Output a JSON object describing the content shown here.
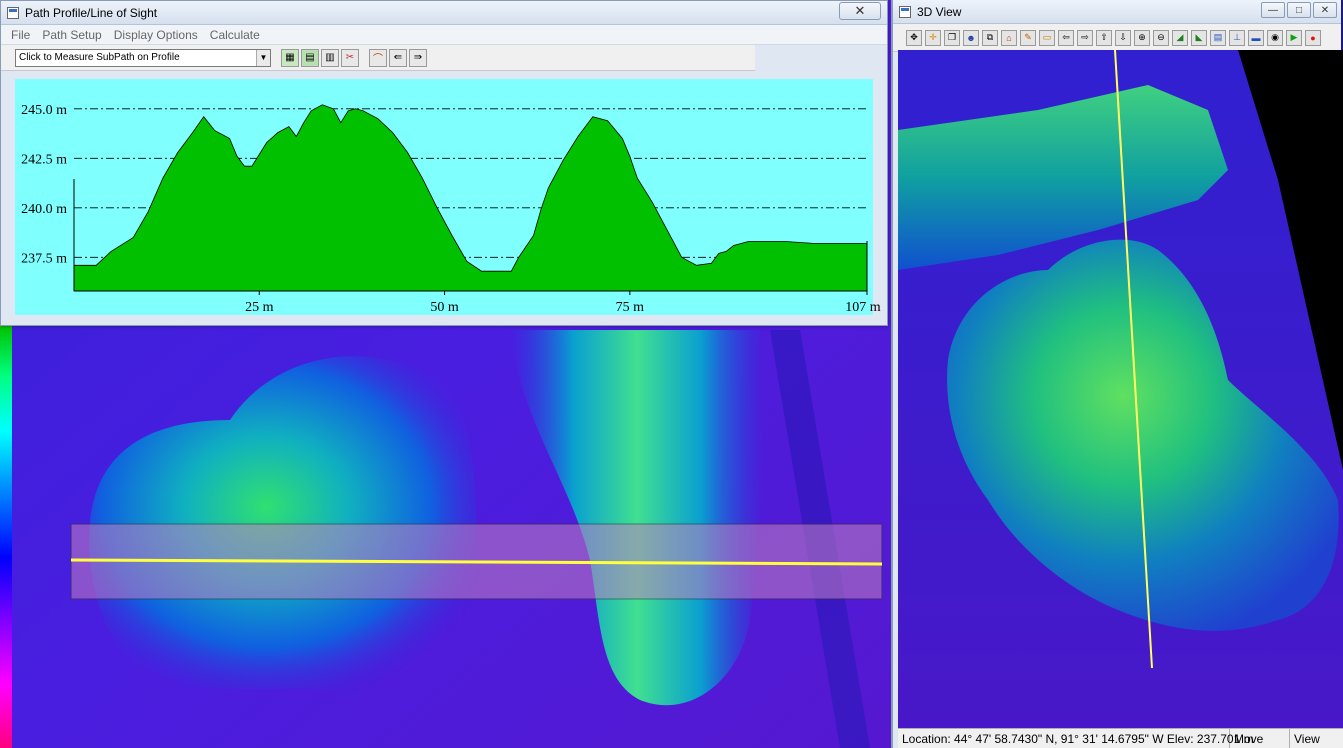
{
  "profile_window": {
    "title": "Path Profile/Line of Sight",
    "close_glyph": "✕",
    "menu": [
      "File",
      "Path Setup",
      "Display Options",
      "Calculate"
    ],
    "subpath_dropdown": "Click to Measure SubPath on Profile",
    "toolbar_icons": [
      "profile-save-icon",
      "profile-export-icon",
      "profile-stats-icon",
      "profile-settings-icon",
      "line-of-sight-icon",
      "path-prev-icon",
      "path-next-icon"
    ]
  },
  "chart_data": {
    "type": "area",
    "title": "",
    "xlabel": "",
    "ylabel": "",
    "xlim": [
      0,
      107
    ],
    "ylim": [
      235.8,
      246.0
    ],
    "y_ticks": [
      {
        "value": 245.0,
        "label": "245.0 m"
      },
      {
        "value": 242.5,
        "label": "242.5 m"
      },
      {
        "value": 240.0,
        "label": "240.0 m"
      },
      {
        "value": 237.5,
        "label": "237.5 m"
      }
    ],
    "x_ticks": [
      {
        "value": 25,
        "label": "25 m"
      },
      {
        "value": 50,
        "label": "50 m"
      },
      {
        "value": 75,
        "label": "75 m"
      },
      {
        "value": 107,
        "label": "107 m"
      }
    ],
    "grid": "dash-dot horizontal",
    "colors": {
      "background": "#80ffff",
      "fill": "#00c000",
      "stroke": "#000000",
      "grid": "#000000"
    },
    "series": [
      {
        "x": [
          0,
          3,
          5,
          8,
          10,
          12,
          14,
          16,
          17.5,
          19,
          21,
          22,
          23,
          24,
          25,
          26,
          27.5,
          29,
          30,
          31,
          32,
          33.5,
          35,
          36,
          37,
          38,
          39,
          40,
          41,
          43,
          45,
          47,
          49,
          51,
          53,
          55,
          57,
          59,
          60,
          62,
          63,
          64,
          66,
          68,
          70,
          72,
          74,
          75,
          76,
          78,
          80,
          82,
          84,
          86,
          87,
          88,
          89,
          90,
          91,
          93,
          96,
          100,
          104,
          107
        ],
        "y": [
          237.1,
          237.1,
          237.8,
          238.5,
          239.8,
          241.5,
          242.8,
          243.8,
          244.6,
          243.9,
          243.5,
          242.6,
          242.1,
          242.1,
          242.7,
          243.3,
          243.8,
          244.1,
          243.6,
          244.3,
          244.9,
          245.2,
          245.0,
          244.3,
          244.9,
          245.0,
          244.9,
          244.7,
          244.5,
          243.8,
          242.8,
          241.5,
          240.0,
          238.6,
          237.3,
          236.8,
          236.8,
          236.8,
          237.5,
          238.6,
          239.9,
          241.0,
          242.4,
          243.6,
          244.6,
          244.4,
          243.5,
          242.6,
          241.5,
          240.3,
          238.9,
          237.5,
          237.1,
          237.2,
          237.7,
          237.8,
          238.1,
          238.2,
          238.3,
          238.3,
          238.3,
          238.2,
          238.2,
          238.2
        ]
      }
    ]
  },
  "view3d_window": {
    "title": "3D View",
    "controls": [
      "—",
      "□",
      "✕"
    ],
    "toolbar_icons": [
      "pan-icon",
      "move-icon",
      "copy-icon",
      "walk-icon",
      "duplicate-icon",
      "home-icon",
      "measure-icon",
      "ruler-icon",
      "arrow-left-icon",
      "arrow-right-icon",
      "arrow-up-icon",
      "arrow-down-icon",
      "zoom-in-icon",
      "zoom-out-icon",
      "terrain-icon",
      "texture-icon",
      "layers-icon",
      "vertical-exaggeration-icon",
      "water-icon",
      "snapshot-icon",
      "play-icon",
      "record-icon"
    ],
    "status": {
      "location": "Location: 44° 47' 58.7430\" N, 91° 31' 14.6795\" W Elev: 237.701 m",
      "mode": "Move",
      "view": "View"
    }
  }
}
